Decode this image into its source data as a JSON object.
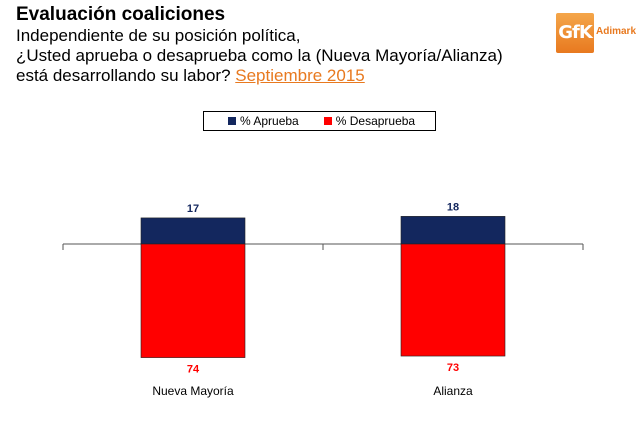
{
  "header": {
    "title": "Evaluación coaliciones",
    "subtitle_line1": "Independiente de su posición política,",
    "subtitle_line2": "¿Usted aprueba o desaprueba como la (Nueva Mayoría/Alianza)",
    "subtitle_line3": "está desarrollando su labor?",
    "date": "Septiembre 2015"
  },
  "logo": {
    "mark": "GfK",
    "text": "Adimark",
    "color": "#e8791f"
  },
  "chart_data": {
    "type": "bar",
    "stacked": "diverging",
    "categories": [
      "Nueva Mayoría",
      "Alianza"
    ],
    "series": [
      {
        "name": "% Aprueba",
        "values": [
          17,
          18
        ],
        "color": "#13275e"
      },
      {
        "name": "% Desaprueba",
        "values": [
          74,
          73
        ],
        "color": "#ff0000"
      }
    ],
    "legend_position": "top-center",
    "grid": false
  }
}
